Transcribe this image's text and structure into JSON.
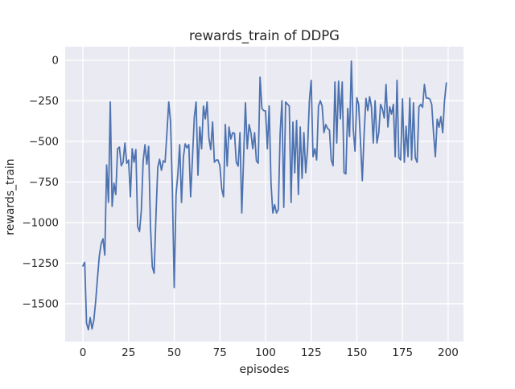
{
  "figure": {
    "background": "#ffffff"
  },
  "chart_data": {
    "type": "line",
    "title": "rewards_train of DDPG",
    "xlabel": "episodes",
    "ylabel": "rewards_train",
    "grid": true,
    "legend_position": "none",
    "x_start": 0,
    "x_step": 1,
    "xticks": [
      0,
      25,
      50,
      75,
      100,
      125,
      150,
      175,
      200
    ],
    "yticks": [
      0,
      -250,
      -500,
      -750,
      -1000,
      -1250,
      -1500
    ],
    "xlim": [
      -9.7,
      208.4
    ],
    "ylim": [
      -1733,
      84
    ],
    "series": [
      {
        "name": "rewards_train",
        "values": [
          -1267,
          -1245,
          -1620,
          -1660,
          -1585,
          -1655,
          -1600,
          -1485,
          -1340,
          -1205,
          -1130,
          -1100,
          -1200,
          -645,
          -875,
          -257,
          -900,
          -757,
          -827,
          -545,
          -535,
          -650,
          -628,
          -510,
          -635,
          -615,
          -841,
          -545,
          -628,
          -550,
          -1024,
          -1055,
          -926,
          -620,
          -520,
          -640,
          -530,
          -1024,
          -1272,
          -1312,
          -960,
          -660,
          -610,
          -678,
          -620,
          -628,
          -450,
          -257,
          -380,
          -800,
          -1400,
          -830,
          -700,
          -520,
          -876,
          -600,
          -515,
          -540,
          -520,
          -841,
          -600,
          -350,
          -257,
          -708,
          -411,
          -545,
          -282,
          -361,
          -257,
          -480,
          -550,
          -380,
          -628,
          -615,
          -615,
          -650,
          -792,
          -841,
          -396,
          -652,
          -411,
          -485,
          -446,
          -450,
          -628,
          -652,
          -446,
          -941,
          -600,
          -262,
          -545,
          -396,
          -446,
          -545,
          -446,
          -620,
          -634,
          -104,
          -297,
          -310,
          -312,
          -545,
          -281,
          -757,
          -941,
          -890,
          -941,
          -920,
          -450,
          -250,
          -906,
          -257,
          -270,
          -282,
          -876,
          -381,
          -693,
          -371,
          -827,
          -411,
          -728,
          -446,
          -693,
          -550,
          -250,
          -124,
          -594,
          -545,
          -614,
          -282,
          -250,
          -282,
          -446,
          -396,
          -420,
          -430,
          -614,
          -650,
          -134,
          -510,
          -129,
          -361,
          -134,
          -693,
          -700,
          -297,
          -470,
          -5,
          -420,
          -560,
          -231,
          -272,
          -500,
          -742,
          -450,
          -235,
          -310,
          -225,
          -287,
          -510,
          -250,
          -510,
          -446,
          -272,
          -300,
          -356,
          -149,
          -411,
          -287,
          -332,
          -272,
          -594,
          -124,
          -600,
          -614,
          -238,
          -629,
          -406,
          -594,
          -233,
          -614,
          -262,
          -600,
          -629,
          -287,
          -272,
          -290,
          -149,
          -233,
          -233,
          -240,
          -272,
          -450,
          -594,
          -363,
          -412,
          -347,
          -446,
          -250,
          -140
        ]
      }
    ],
    "style": {
      "line_color": "#4c72b0",
      "axes_background": "#eaeaf2",
      "grid_color": "#ffffff",
      "text_color": "#262626"
    }
  }
}
